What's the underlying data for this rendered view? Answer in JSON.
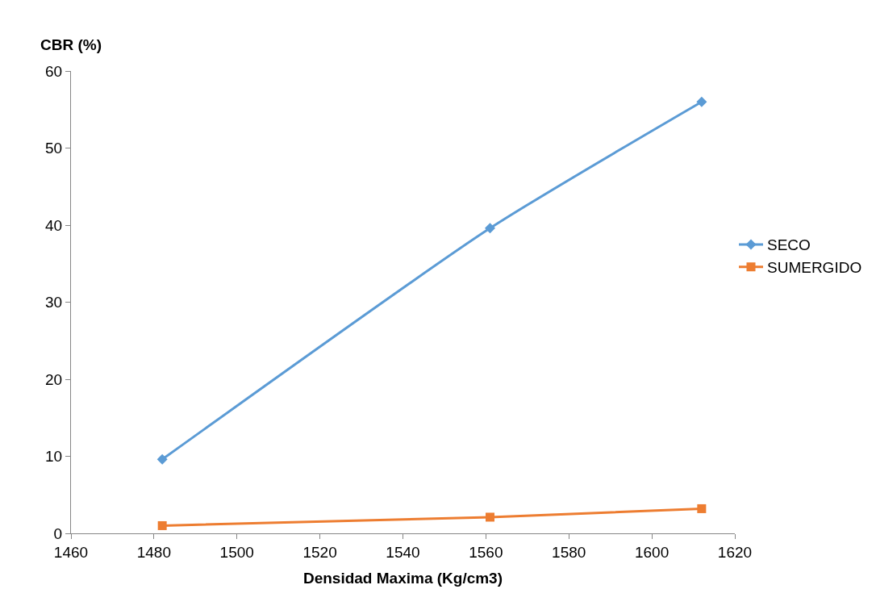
{
  "chart_data": {
    "type": "line",
    "xlabel": "Densidad Maxima (Kg/cm3)",
    "ylabel": "CBR (%)",
    "x": [
      1482,
      1561,
      1612
    ],
    "series": [
      {
        "name": "SECO",
        "color": "#5b9bd5",
        "values": [
          9.6,
          39.6,
          56.0
        ],
        "marker": "diamond"
      },
      {
        "name": "SUMERGIDO",
        "color": "#ed7d31",
        "values": [
          1.0,
          2.1,
          3.2
        ],
        "marker": "square"
      }
    ],
    "xlim": [
      1460,
      1620
    ],
    "xticks": [
      1460,
      1480,
      1500,
      1520,
      1540,
      1560,
      1580,
      1600,
      1620
    ],
    "ylim": [
      0,
      60
    ],
    "yticks": [
      0,
      10,
      20,
      30,
      40,
      50,
      60
    ],
    "grid": false,
    "legend": "right",
    "line_style": "solid"
  }
}
